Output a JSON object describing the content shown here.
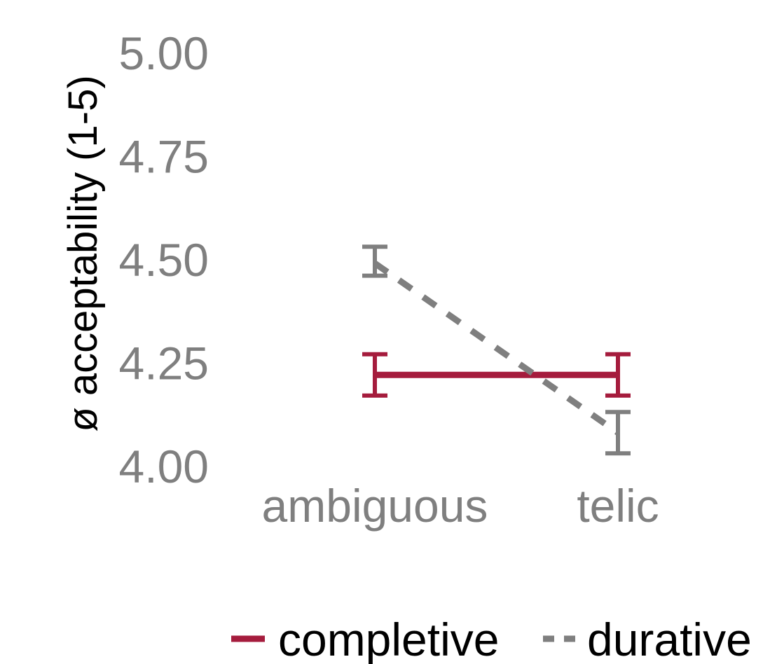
{
  "chart_data": {
    "type": "line",
    "categories": [
      "ambiguous",
      "telic"
    ],
    "ylabel": "ø acceptability (1-5)",
    "xlabel": "",
    "title": "",
    "ylim": [
      4.0,
      5.0
    ],
    "yticks": [
      "4.00",
      "4.25",
      "4.50",
      "4.75",
      "5.00"
    ],
    "grid": false,
    "legend_position": "bottom",
    "series": [
      {
        "name": "completive",
        "color": "#a51c3d",
        "dash": "solid",
        "values": [
          4.22,
          4.22
        ],
        "err_low": [
          4.17,
          4.17
        ],
        "err_high": [
          4.27,
          4.27
        ]
      },
      {
        "name": "durative",
        "color": "#7f7f7f",
        "dash": "dashed",
        "values": [
          4.49,
          4.08
        ],
        "err_low": [
          4.46,
          4.03
        ],
        "err_high": [
          4.53,
          4.13
        ]
      }
    ]
  }
}
